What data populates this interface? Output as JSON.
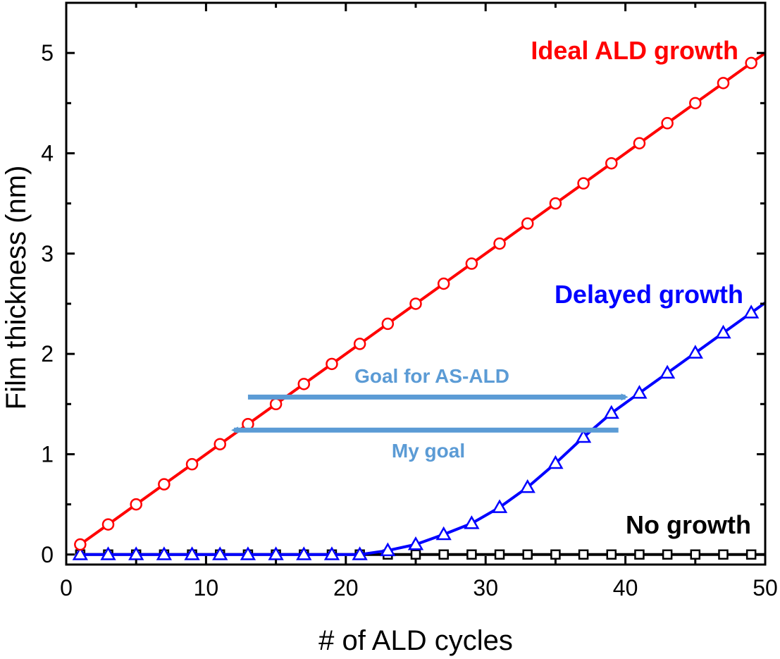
{
  "chart_data": {
    "type": "line",
    "xlabel": "# of ALD cycles",
    "ylabel": "Film thickness (nm)",
    "xlim": [
      0,
      50
    ],
    "ylim": [
      -0.1,
      5.5
    ],
    "xticks": [
      0,
      10,
      20,
      30,
      40,
      50
    ],
    "yticks": [
      0,
      1,
      2,
      3,
      4,
      5
    ],
    "grid": false,
    "series": [
      {
        "name": "Ideal ALD growth",
        "color": "#ff0000",
        "marker": "circle",
        "x": [
          1,
          3,
          5,
          7,
          9,
          11,
          13,
          15,
          17,
          19,
          21,
          23,
          25,
          27,
          29,
          31,
          33,
          35,
          37,
          39,
          41,
          43,
          45,
          47,
          49
        ],
        "y": [
          0.1,
          0.3,
          0.5,
          0.7,
          0.9,
          1.1,
          1.3,
          1.5,
          1.7,
          1.9,
          2.1,
          2.3,
          2.5,
          2.7,
          2.9,
          3.1,
          3.3,
          3.5,
          3.7,
          3.9,
          4.1,
          4.3,
          4.5,
          4.7,
          4.9
        ]
      },
      {
        "name": "Delayed growth",
        "color": "#0000ff",
        "marker": "triangle",
        "x": [
          1,
          3,
          5,
          7,
          9,
          11,
          13,
          15,
          17,
          19,
          21,
          23,
          25,
          27,
          29,
          31,
          33,
          35,
          37,
          39,
          41,
          43,
          45,
          47,
          49
        ],
        "y": [
          0,
          0,
          0,
          0,
          0,
          0,
          0,
          0,
          0,
          0,
          0,
          0.04,
          0.1,
          0.2,
          0.31,
          0.47,
          0.67,
          0.91,
          1.17,
          1.41,
          1.61,
          1.81,
          2.01,
          2.21,
          2.41
        ]
      },
      {
        "name": "No growth",
        "color": "#000000",
        "marker": "square",
        "x": [
          1,
          3,
          5,
          7,
          9,
          11,
          13,
          15,
          17,
          19,
          21,
          23,
          25,
          27,
          29,
          31,
          33,
          35,
          37,
          39,
          41,
          43,
          45,
          47,
          49
        ],
        "y": [
          0,
          0,
          0,
          0,
          0,
          0,
          0,
          0,
          0,
          0,
          0,
          0,
          0,
          0,
          0,
          0,
          0,
          0,
          0,
          0,
          0,
          0,
          0,
          0,
          0
        ]
      }
    ],
    "annotations": [
      {
        "text": "Goal for AS-ALD",
        "color": "#5b9bd5",
        "arrow_from": [
          13,
          1.57
        ],
        "arrow_to": [
          40,
          1.57
        ]
      },
      {
        "text": "My goal",
        "color": "#5b9bd5",
        "arrow_from": [
          39.5,
          1.24
        ],
        "arrow_to": [
          12,
          1.24
        ]
      }
    ]
  }
}
